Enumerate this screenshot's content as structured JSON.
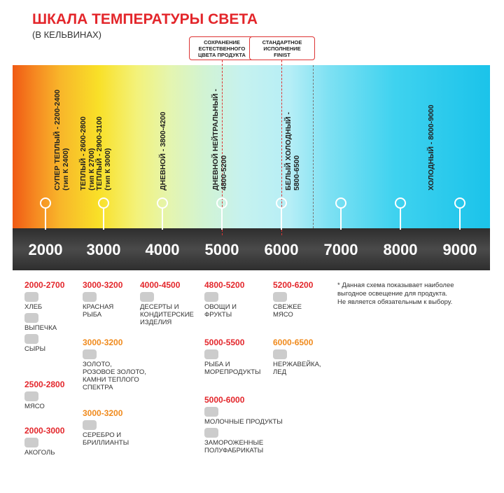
{
  "header": {
    "title": "ШКАЛА ТЕМПЕРАТУРЫ СВЕТА",
    "subtitle": "(В КЕЛЬВИНАХ)"
  },
  "markers": [
    {
      "lines": [
        "СОХРАНЕНИЕ",
        "ЕСТЕСТВЕННОГО",
        "ЦВЕТА ПРОДУКТА"
      ]
    },
    {
      "lines": [
        "СТАНДАРТНОЕ",
        "ИСПОЛНЕНИЕ",
        "FINIST"
      ]
    }
  ],
  "bands": [
    {
      "lines": [
        "СУПЕР ТЕПЛЫЙ - 2200-2400",
        "(тип К 2400)"
      ]
    },
    {
      "lines": [
        "ТЕПЛЫЙ - 2600-2800",
        "(тип К 2700)"
      ]
    },
    {
      "lines": [
        "ТЕПЛЫЙ - 2900-3100",
        "(тип К 3000)"
      ]
    },
    {
      "lines": [
        "ДНЕВНОЙ - 3800-4200"
      ]
    },
    {
      "lines": [
        "ДНЕВНОЙ НЕЙТРАЛЬНЫЙ -",
        "4800-5200"
      ]
    },
    {
      "lines": [
        "БЕЛЫЙ ХОЛОДНЫЙ -",
        "5800-6500"
      ]
    },
    {
      "lines": [
        "ХОЛОДНЫЙ - 8000-9000"
      ]
    }
  ],
  "scale": [
    "2000",
    "3000",
    "4000",
    "5000",
    "6000",
    "7000",
    "8000",
    "9000"
  ],
  "groups": [
    {
      "range": "2000-2700",
      "items": [
        [
          "ХЛЕБ"
        ],
        [
          "ВЫПЕЧКА"
        ],
        [
          "СЫРЫ"
        ]
      ]
    },
    {
      "range": "2500-2800",
      "items": [
        [
          "МЯСО"
        ]
      ]
    },
    {
      "range": "2000-3000",
      "items": [
        [
          "АКОГОЛЬ"
        ]
      ]
    },
    {
      "range": "3000-3200",
      "items": [
        [
          "КРАСНАЯ",
          "РЫБА"
        ]
      ]
    },
    {
      "range": "3000-3200",
      "items": [
        [
          "ЗОЛОТО,",
          "РОЗОВОЕ ЗОЛОТО,",
          "КАМНИ ТЕПЛОГО",
          "СПЕКТРА"
        ]
      ]
    },
    {
      "range": "3000-3200",
      "items": [
        [
          "СЕРЕБРО И",
          "БРИЛЛИАНТЫ"
        ]
      ]
    },
    {
      "range": "4000-4500",
      "items": [
        [
          "ДЕСЕРТЫ И",
          "КОНДИТЕРСКИЕ",
          "ИЗДЕЛИЯ"
        ]
      ]
    },
    {
      "range": "4800-5200",
      "items": [
        [
          "ОВОЩИ И",
          "ФРУКТЫ"
        ]
      ]
    },
    {
      "range": "5000-5500",
      "items": [
        [
          "РЫБА И",
          "МОРЕПРОДУКТЫ"
        ]
      ]
    },
    {
      "range": "5000-6000",
      "items": [
        [
          "МОЛОЧНЫЕ ПРОДУКТЫ"
        ],
        [
          "ЗАМОРОЖЕННЫЕ",
          "ПОЛУФАБРИКАТЫ"
        ]
      ]
    },
    {
      "range": "5200-6200",
      "items": [
        [
          "СВЕЖЕЕ",
          "МЯСО"
        ]
      ]
    },
    {
      "range": "6000-6500",
      "items": [
        [
          "НЕРЖАВЕЙКА,",
          "ЛЕД"
        ]
      ]
    }
  ],
  "note": [
    "* Данная схема показывает наиболее",
    "выгодное освещение для продукта.",
    "Не является обязательным к выбору."
  ]
}
